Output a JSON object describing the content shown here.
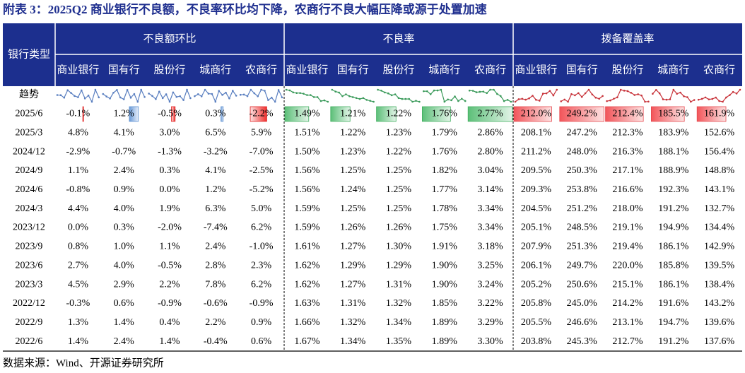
{
  "title": "附表 3：2025Q2 商业银行不良额，不良率环比均下降，农商行不良大幅压降或源于处置加速",
  "table": {
    "corner": "银行类型",
    "groups": [
      "不良额环比",
      "不良率",
      "拨备覆盖率"
    ],
    "columns": [
      "商业银行",
      "国有行",
      "股份行",
      "城商行",
      "农商行",
      "商业银行",
      "国有行",
      "股份行",
      "城商行",
      "农商行",
      "商业银行",
      "国有行",
      "股份行",
      "城商行",
      "农商行"
    ],
    "trend_label": "趋势",
    "rows": [
      {
        "label": "2025/6",
        "cells": [
          "-0.1%",
          "1.2%",
          "-0.5%",
          "0.3%",
          "-2.2%",
          "1.49%",
          "1.21%",
          "1.22%",
          "1.76%",
          "2.77%",
          "212.0%",
          "249.2%",
          "212.4%",
          "185.5%",
          "161.9%"
        ]
      },
      {
        "label": "2025/3",
        "cells": [
          "4.8%",
          "4.1%",
          "3.0%",
          "6.5%",
          "5.9%",
          "1.51%",
          "1.22%",
          "1.23%",
          "1.79%",
          "2.86%",
          "208.1%",
          "247.2%",
          "212.3%",
          "183.9%",
          "152.6%"
        ]
      },
      {
        "label": "2024/12",
        "cells": [
          "-2.9%",
          "-0.7%",
          "-1.3%",
          "-3.2%",
          "-7.0%",
          "1.50%",
          "1.23%",
          "1.22%",
          "1.76%",
          "2.80%",
          "211.2%",
          "248.0%",
          "216.3%",
          "188.1%",
          "156.4%"
        ]
      },
      {
        "label": "2024/9",
        "cells": [
          "1.1%",
          "2.4%",
          "0.3%",
          "4.1%",
          "-2.5%",
          "1.56%",
          "1.25%",
          "1.25%",
          "1.82%",
          "3.04%",
          "209.5%",
          "250.3%",
          "217.1%",
          "188.9%",
          "148.8%"
        ]
      },
      {
        "label": "2024/6",
        "cells": [
          "-0.8%",
          "0.9%",
          "0.0%",
          "1.2%",
          "-5.2%",
          "1.56%",
          "1.24%",
          "1.25%",
          "1.77%",
          "3.14%",
          "209.3%",
          "253.8%",
          "216.6%",
          "192.3%",
          "143.1%"
        ]
      },
      {
        "label": "2024/3",
        "cells": [
          "4.4%",
          "4.0%",
          "1.9%",
          "6.3%",
          "5.0%",
          "1.59%",
          "1.25%",
          "1.25%",
          "1.78%",
          "3.34%",
          "204.5%",
          "251.2%",
          "218.0%",
          "191.2%",
          "132.7%"
        ]
      },
      {
        "label": "2023/12",
        "cells": [
          "0.0%",
          "0.3%",
          "-2.0%",
          "-7.4%",
          "6.2%",
          "1.59%",
          "1.26%",
          "1.26%",
          "1.75%",
          "3.34%",
          "205.1%",
          "248.5%",
          "219.1%",
          "194.9%",
          "134.4%"
        ]
      },
      {
        "label": "2023/9",
        "cells": [
          "0.8%",
          "1.0%",
          "1.1%",
          "2.4%",
          "-1.0%",
          "1.61%",
          "1.27%",
          "1.30%",
          "1.91%",
          "3.18%",
          "207.9%",
          "251.3%",
          "219.4%",
          "186.1%",
          "142.9%"
        ]
      },
      {
        "label": "2023/6",
        "cells": [
          "2.7%",
          "4.0%",
          "-0.5%",
          "2.8%",
          "2.3%",
          "1.62%",
          "1.29%",
          "1.29%",
          "1.90%",
          "3.25%",
          "206.1%",
          "249.7%",
          "220.0%",
          "185.8%",
          "139.5%"
        ]
      },
      {
        "label": "2023/3",
        "cells": [
          "4.5%",
          "2.9%",
          "2.2%",
          "7.8%",
          "6.2%",
          "1.62%",
          "1.27%",
          "1.31%",
          "1.90%",
          "3.24%",
          "205.2%",
          "250.6%",
          "215.1%",
          "186.1%",
          "138.4%"
        ]
      },
      {
        "label": "2022/12",
        "cells": [
          "-0.3%",
          "0.6%",
          "-0.9%",
          "-0.6%",
          "-0.9%",
          "1.63%",
          "1.31%",
          "1.32%",
          "1.85%",
          "3.22%",
          "205.8%",
          "245.0%",
          "214.2%",
          "191.6%",
          "143.2%"
        ]
      },
      {
        "label": "2022/9",
        "cells": [
          "1.3%",
          "1.4%",
          "0.4%",
          "2.2%",
          "0.9%",
          "1.66%",
          "1.32%",
          "1.34%",
          "1.89%",
          "3.29%",
          "205.5%",
          "246.6%",
          "213.1%",
          "194.7%",
          "139.6%"
        ]
      },
      {
        "label": "2022/6",
        "cells": [
          "1.4%",
          "2.4%",
          "1.4%",
          "-0.4%",
          "0.6%",
          "1.67%",
          "1.34%",
          "1.35%",
          "1.89%",
          "3.30%",
          "203.8%",
          "245.3%",
          "212.7%",
          "191.2%",
          "137.6%"
        ]
      }
    ]
  },
  "source": "数据来源：Wind、开源证券研究所"
}
